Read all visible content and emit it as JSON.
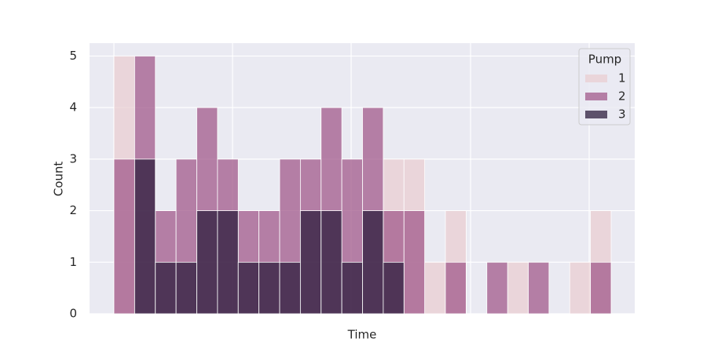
{
  "chart_data": {
    "type": "histogram",
    "x_label": "Time",
    "y_label": "Count",
    "categories": [
      null,
      null,
      null,
      null,
      null,
      null,
      null,
      null,
      null,
      null,
      null,
      null,
      null,
      null,
      null,
      null,
      null,
      null,
      null,
      null,
      null,
      null,
      null,
      null
    ],
    "legend_title": "Pump",
    "legend_position": "upper right",
    "grid": true,
    "ylim": [
      0,
      5.25
    ],
    "yticks": [
      0,
      1,
      2,
      3,
      4,
      5
    ],
    "series": [
      {
        "name": "1",
        "color": "#eaced1",
        "values": [
          5,
          0,
          0,
          0,
          0,
          0,
          0,
          0,
          0,
          0,
          0,
          0,
          0,
          3,
          3,
          1,
          2,
          0,
          0,
          1,
          0,
          0,
          1,
          2
        ]
      },
      {
        "name": "2",
        "color": "#a25a8b",
        "values": [
          3,
          5,
          2,
          3,
          4,
          3,
          2,
          2,
          3,
          3,
          4,
          3,
          4,
          2,
          2,
          0,
          1,
          0,
          1,
          0,
          1,
          0,
          0,
          1
        ]
      },
      {
        "name": "3",
        "color": "#2d1e3e",
        "values": [
          0,
          3,
          1,
          1,
          2,
          2,
          1,
          1,
          1,
          2,
          2,
          1,
          2,
          1,
          0,
          0,
          0,
          0,
          0,
          0,
          0,
          0,
          0,
          0
        ]
      }
    ]
  }
}
